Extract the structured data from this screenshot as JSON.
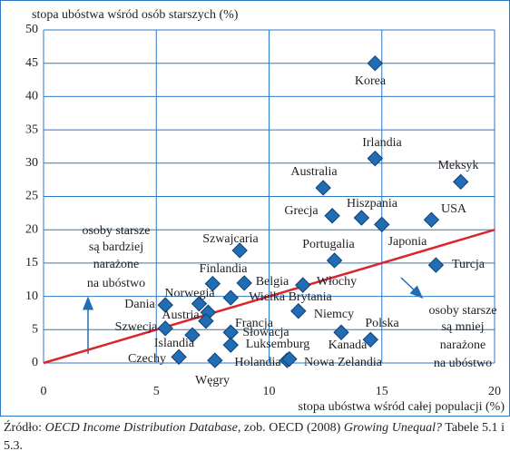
{
  "chart_data": {
    "type": "scatter",
    "y_label": "stopa ubóstwa wśród osób starszych (%)",
    "x_label": "stopa ubóstwa wśród całej populacji (%)",
    "xlim": [
      0,
      20
    ],
    "ylim": [
      0,
      50
    ],
    "xticks": [
      0,
      5,
      10,
      15,
      20
    ],
    "yticks": [
      0,
      5,
      10,
      15,
      20,
      25,
      30,
      35,
      40,
      45,
      50
    ],
    "grid": true,
    "grid_color": "#2f78c4",
    "marker_color": "#1f6db5",
    "labels": [
      "Korea",
      "Irlandia",
      "Meksyk",
      "Australia",
      "Grecja",
      "Hiszpania",
      "Japonia",
      "USA",
      "Szwajcaria",
      "Portugalia",
      "Turcja",
      "Finlandia",
      "Belgia",
      "Włochy",
      "Wielka Brytania",
      "Norwegia",
      "Dania",
      "Austria",
      "Niemcy",
      "Francja",
      "Szwecja",
      "Słowacja",
      "Kanada",
      "Polska",
      "Islandia",
      "Luksemburg",
      "Czechy",
      "Holandia",
      "Węgry",
      "Nowa Zelandia"
    ],
    "x": [
      14.7,
      14.7,
      18.5,
      12.4,
      12.8,
      14.1,
      15.0,
      17.2,
      8.7,
      12.9,
      17.4,
      7.5,
      8.9,
      11.5,
      8.3,
      6.9,
      5.4,
      7.3,
      11.3,
      7.2,
      5.4,
      8.3,
      13.2,
      14.5,
      6.6,
      8.3,
      6.0,
      10.8,
      7.6,
      10.9
    ],
    "y": [
      45.0,
      30.7,
      27.2,
      26.3,
      22.1,
      21.8,
      20.8,
      21.5,
      16.9,
      15.4,
      14.7,
      11.9,
      12.0,
      11.7,
      9.8,
      8.9,
      8.7,
      7.6,
      7.8,
      6.3,
      5.2,
      4.6,
      4.6,
      3.5,
      4.2,
      2.7,
      0.9,
      0.4,
      0.4,
      0.6
    ],
    "reference_line": {
      "x": [
        0,
        20
      ],
      "y": [
        0,
        20
      ],
      "color": "#d9262c"
    },
    "annotations": [
      {
        "lines": [
          "osoby starsze",
          "są bardziej",
          "narażone",
          "na ubóstwo"
        ]
      },
      {
        "lines": [
          "osoby starsze",
          "są mniej",
          "narażone",
          "na ubóstwo"
        ]
      }
    ]
  },
  "source": [
    {
      "text": "Źródło: ",
      "italic": false
    },
    {
      "text": "OECD Income Distribution Database",
      "italic": true
    },
    {
      "text": ", zob. OECD (2008) ",
      "italic": false
    },
    {
      "text": "Growing Unequal?",
      "italic": true
    },
    {
      "text": " Tabele 5.1 i 5.3.",
      "italic": false
    }
  ]
}
